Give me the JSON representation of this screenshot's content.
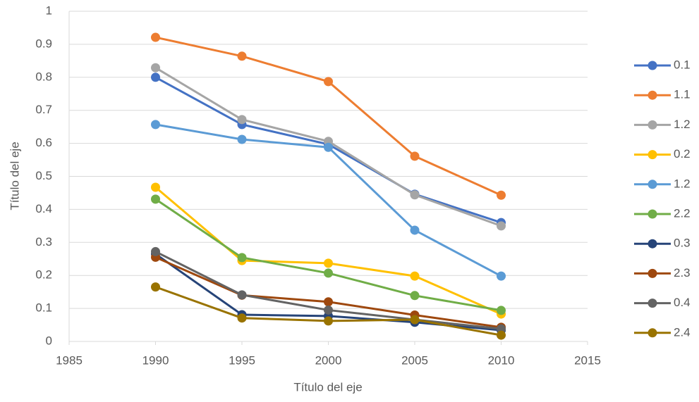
{
  "chart_data": {
    "type": "line",
    "x_label": "Título del eje",
    "y_label": "Título del eje",
    "x": [
      1990,
      1995,
      2000,
      2005,
      2010
    ],
    "xlim": [
      1985,
      2015
    ],
    "xticks": [
      1985,
      1990,
      1995,
      2000,
      2005,
      2010,
      2015
    ],
    "ylim": [
      0,
      1
    ],
    "yticks": [
      0,
      0.1,
      0.2,
      0.3,
      0.4,
      0.5,
      0.6,
      0.7,
      0.8,
      0.9,
      1
    ],
    "grid": true,
    "legend": "right",
    "series": [
      {
        "name": "0.1",
        "color": "#4472c4",
        "values": [
          0.8,
          0.657,
          0.597,
          0.446,
          0.36
        ]
      },
      {
        "name": "1.1",
        "color": "#ed7d31",
        "values": [
          0.921,
          0.864,
          0.787,
          0.561,
          0.443
        ]
      },
      {
        "name": "1.2",
        "color": "#a5a5a5",
        "values": [
          0.829,
          0.672,
          0.606,
          0.444,
          0.35
        ]
      },
      {
        "name": "0.2",
        "color": "#ffc000",
        "values": [
          0.467,
          0.245,
          0.237,
          0.198,
          0.083
        ]
      },
      {
        "name": "1.2",
        "color": "#5b9bd5",
        "values": [
          0.657,
          0.612,
          0.588,
          0.337,
          0.198
        ]
      },
      {
        "name": "2.2",
        "color": "#70ad47",
        "values": [
          0.431,
          0.254,
          0.207,
          0.139,
          0.094
        ]
      },
      {
        "name": "0.3",
        "color": "#264478",
        "values": [
          0.265,
          0.081,
          0.077,
          0.058,
          0.034
        ]
      },
      {
        "name": "2.3",
        "color": "#9e480e",
        "values": [
          0.255,
          0.14,
          0.12,
          0.08,
          0.043
        ]
      },
      {
        "name": "0.4",
        "color": "#636363",
        "values": [
          0.272,
          0.141,
          0.095,
          0.066,
          0.038
        ]
      },
      {
        "name": "2.4",
        "color": "#997300",
        "values": [
          0.165,
          0.071,
          0.062,
          0.066,
          0.019
        ]
      }
    ]
  }
}
